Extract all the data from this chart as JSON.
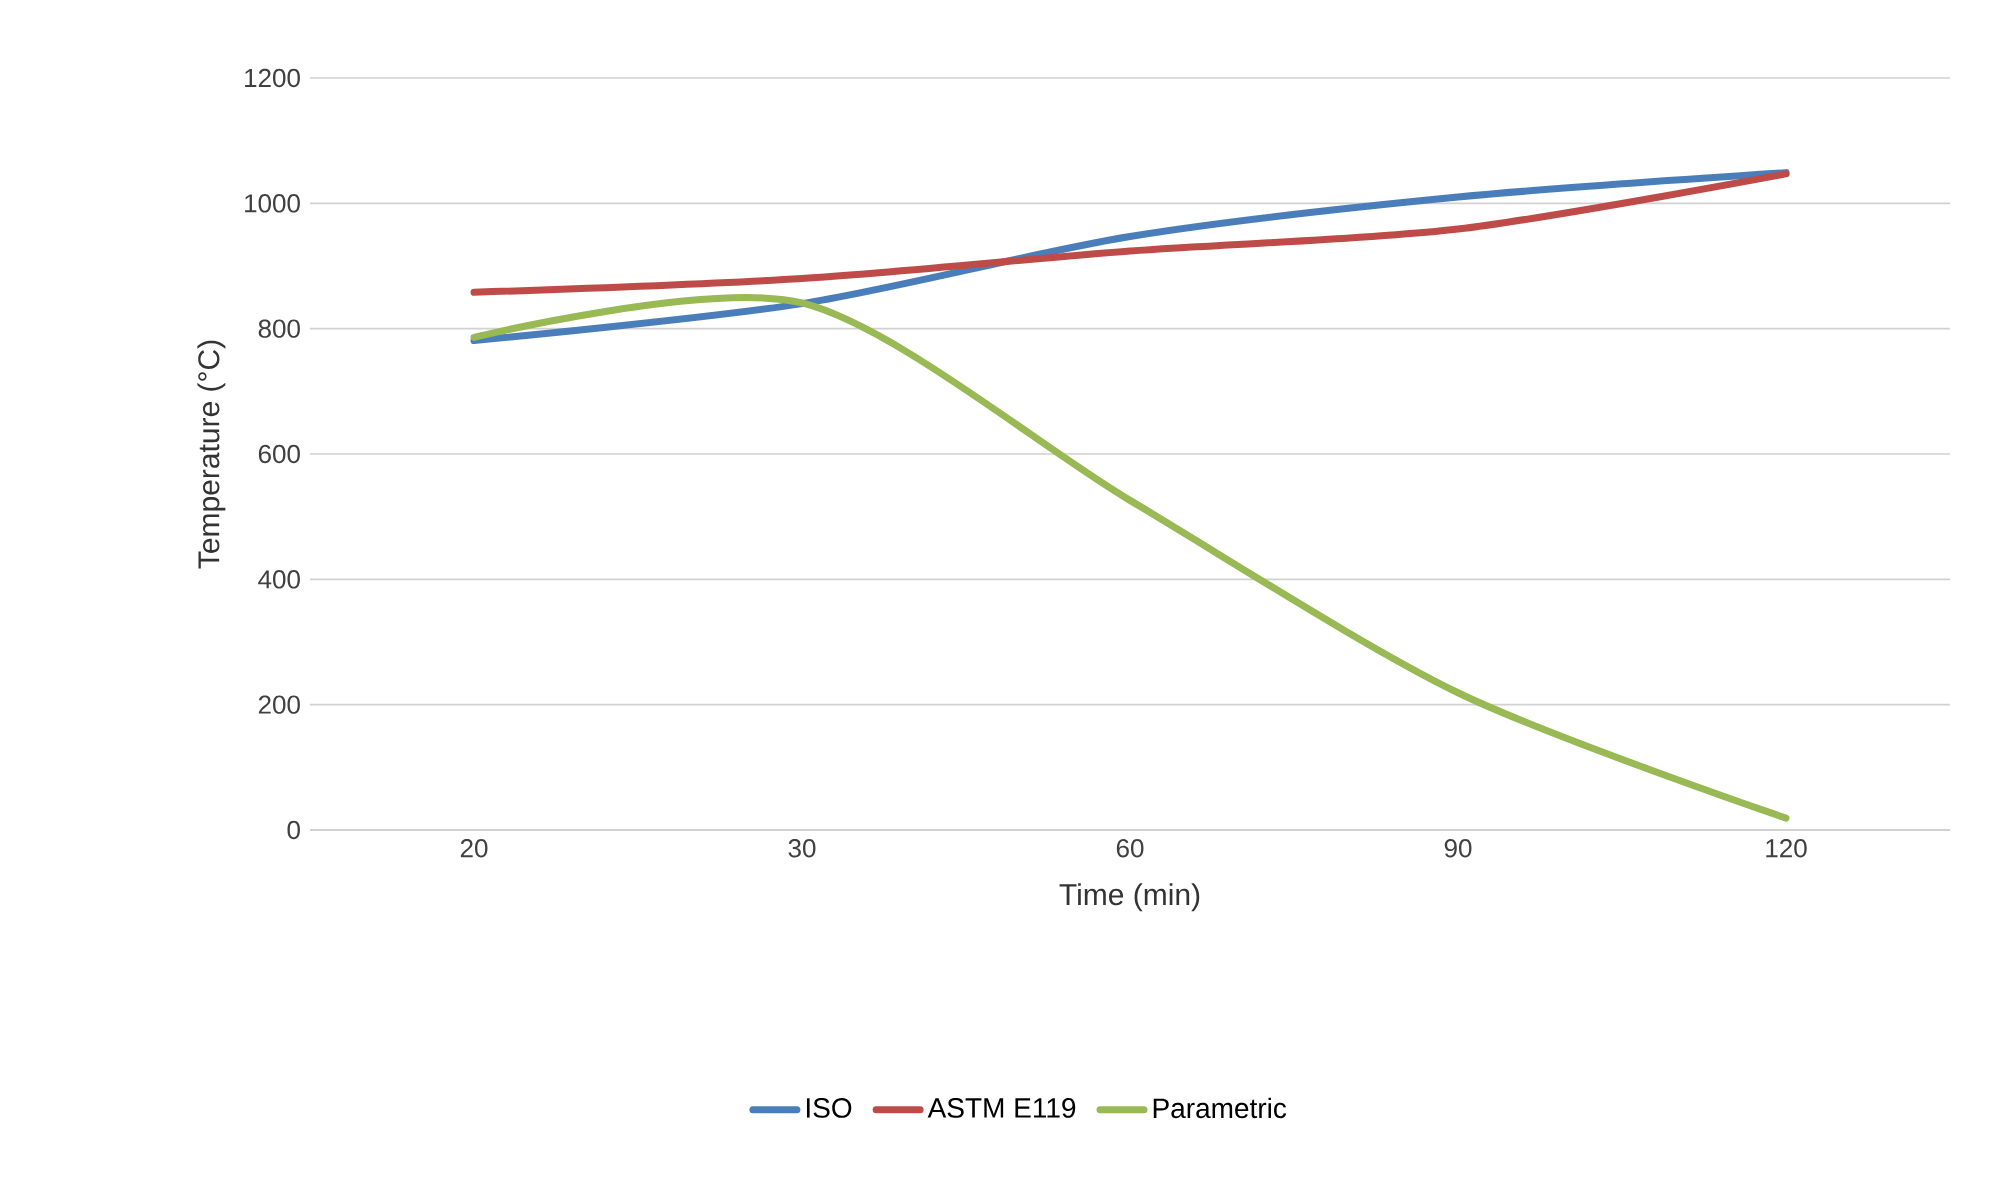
{
  "chart_data": {
    "type": "line",
    "xlabel": "Time (min)",
    "ylabel": "Temperature (°C)",
    "categories": [
      "20",
      "30",
      "60",
      "90",
      "120"
    ],
    "series": [
      {
        "name": "ISO",
        "color": "#4a7ebb",
        "values": [
          781,
          840,
          947,
          1010,
          1049
        ]
      },
      {
        "name": "ASTM E119",
        "color": "#be4b48",
        "values": [
          858,
          880,
          924,
          959,
          1047
        ]
      },
      {
        "name": "Parametric",
        "color": "#98b954",
        "values": [
          786,
          841,
          526,
          219,
          19
        ]
      }
    ],
    "ylim": [
      0,
      1200
    ],
    "yticks": [
      0,
      200,
      400,
      600,
      800,
      1000,
      1200
    ],
    "grid": "y",
    "legend": "bottom",
    "marker": "none",
    "line_style": "solid"
  }
}
